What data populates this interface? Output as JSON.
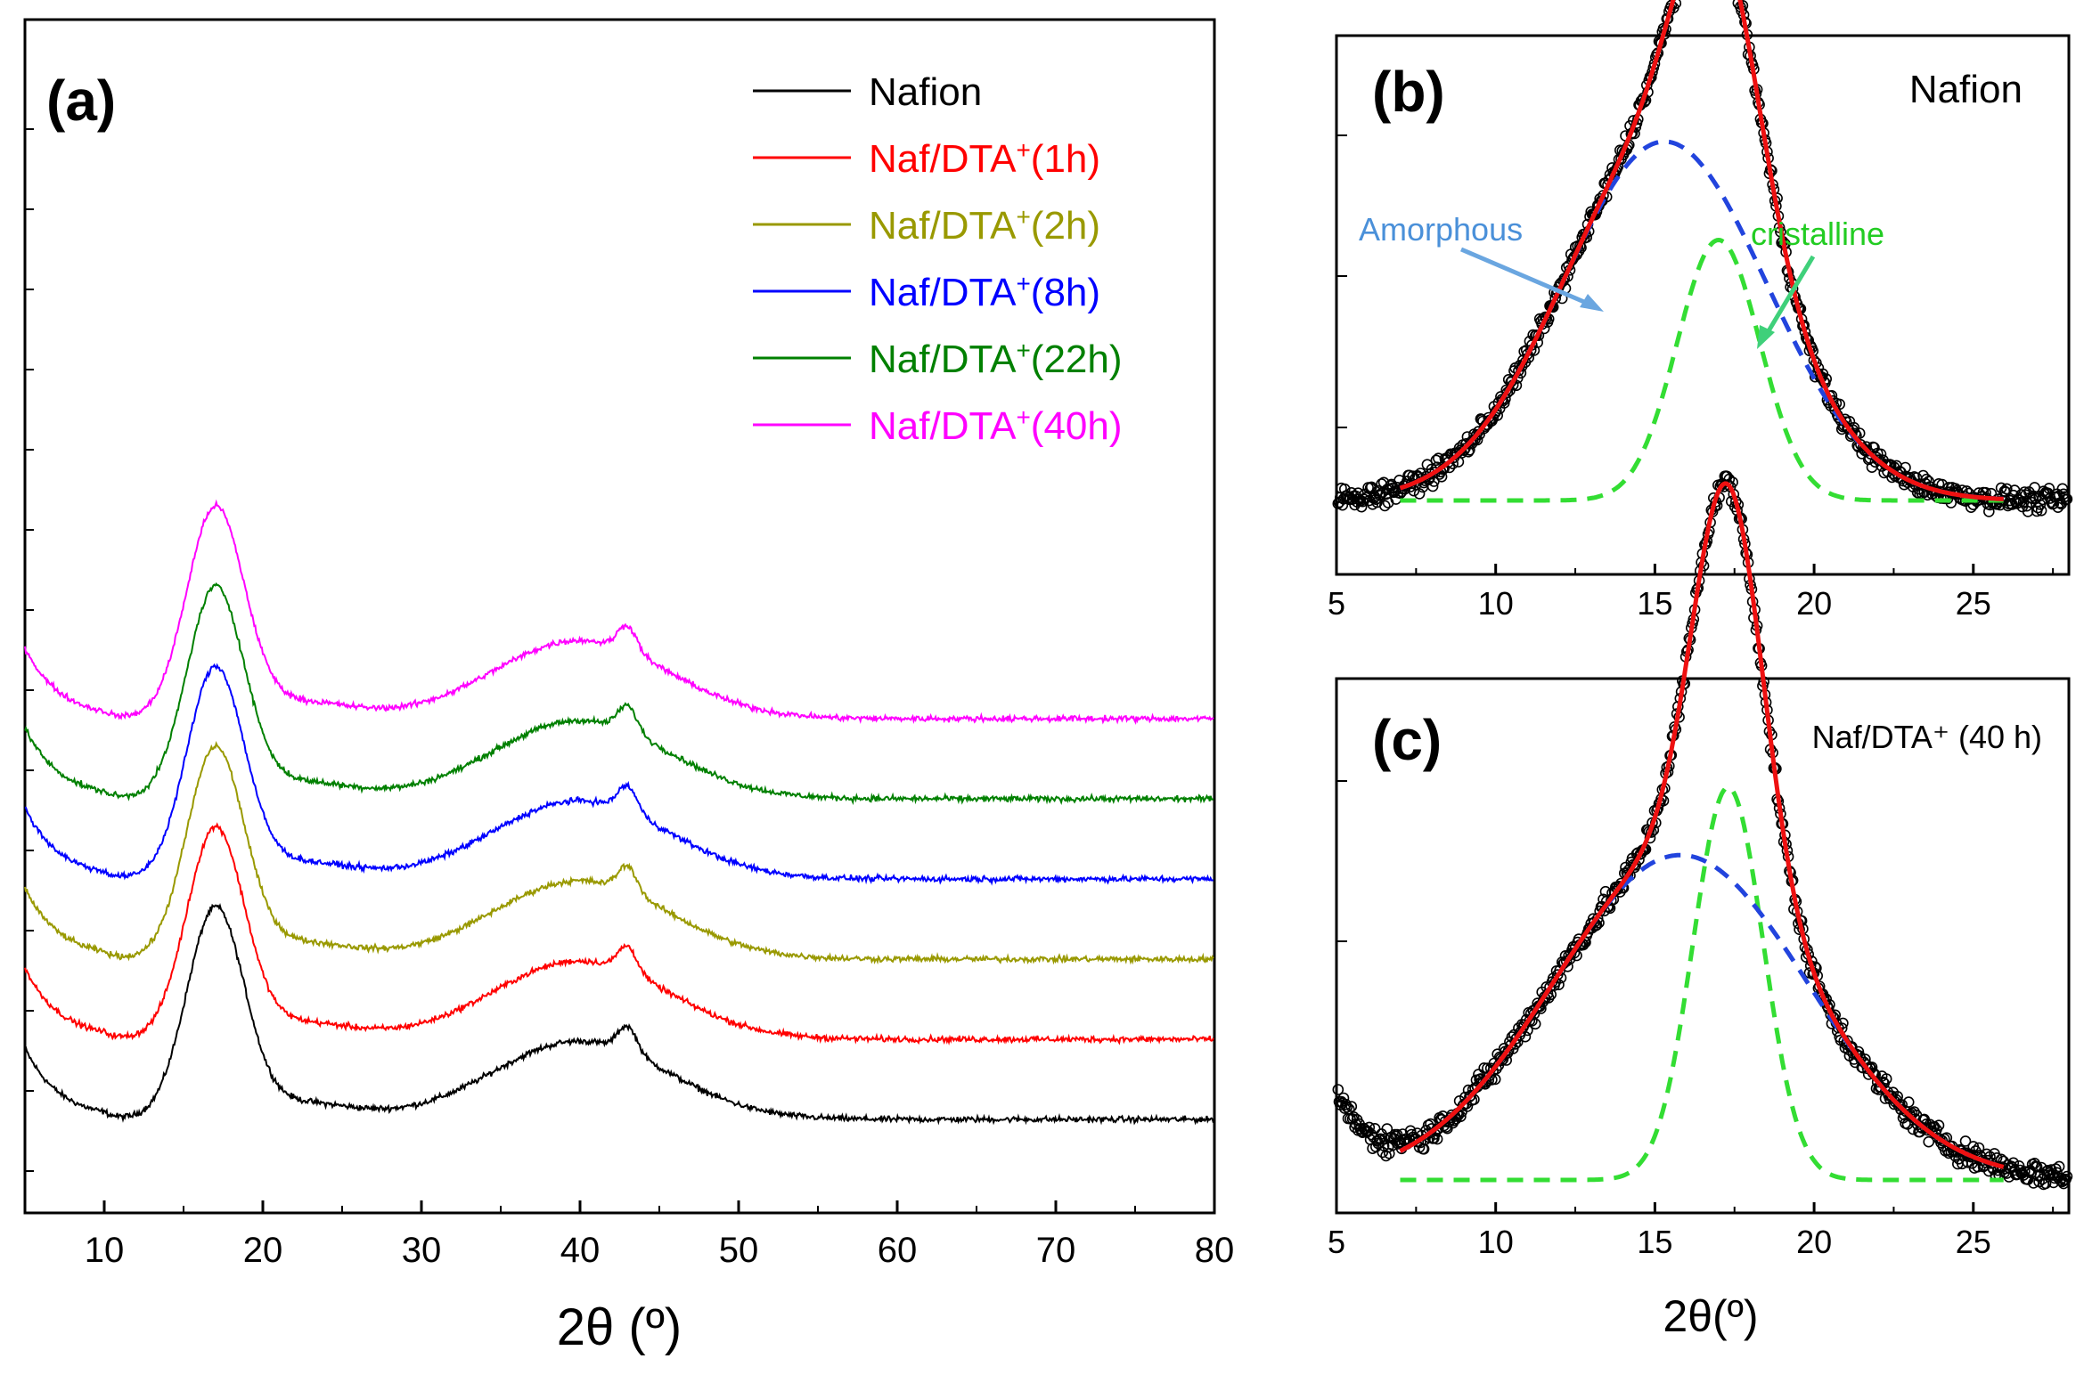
{
  "chart_data": [
    {
      "panel": "a",
      "type": "line",
      "panel_label": "(a)",
      "xlabel": "2θ (º)",
      "ylabel": "",
      "xlim": [
        5,
        80
      ],
      "xticks": [
        "10",
        "20",
        "30",
        "40",
        "50",
        "60",
        "70",
        "80"
      ],
      "legend_position": "top-right",
      "series": [
        {
          "name": "Nafion",
          "legend_label": "Nafion",
          "color": "#000000",
          "offset": 0
        },
        {
          "name": "Naf/DTA+(1h)",
          "legend_label": "Naf/DTA",
          "legend_sup": "+",
          "legend_suffix": "(1h)",
          "color": "#ff0000",
          "offset": 1
        },
        {
          "name": "Naf/DTA+(2h)",
          "legend_label": "Naf/DTA",
          "legend_sup": "+",
          "legend_suffix": "(2h)",
          "color": "#999900",
          "offset": 2
        },
        {
          "name": "Naf/DTA+(8h)",
          "legend_label": "Naf/DTA",
          "legend_sup": "+",
          "legend_suffix": "(8h)",
          "color": "#0000ff",
          "offset": 3
        },
        {
          "name": "Naf/DTA+(22h)",
          "legend_label": "Naf/DTA",
          "legend_sup": "+",
          "legend_suffix": "(22h)",
          "color": "#008000",
          "offset": 4
        },
        {
          "name": "Naf/DTA+(40h)",
          "legend_label": "Naf/DTA",
          "legend_sup": "+",
          "legend_suffix": "(40h)",
          "color": "#ff00ff",
          "offset": 5
        }
      ],
      "profile": {
        "start": 0.55,
        "valley": 0.0,
        "peak": 1.45,
        "peak_x": 17.0,
        "valley_x": 10.0,
        "amorphous_x": 40.0,
        "amorphous_h": 0.55,
        "sharp_x": 43.0,
        "tail": 0.05
      }
    },
    {
      "panel": "b",
      "type": "scatter",
      "panel_label": "(b)",
      "title": "Nafion",
      "xlim": [
        5,
        28
      ],
      "xticks": [
        "5",
        "10",
        "15",
        "20",
        "25"
      ],
      "annotations": [
        {
          "text": "Amorphous",
          "color": "#4a90d9"
        },
        {
          "text": "cristalline",
          "color": "#22cc22"
        }
      ],
      "fit": {
        "amorphous_center": 15.3,
        "amorphous_width": 3.2,
        "amorphous_height": 0.62,
        "crystal_center": 17.0,
        "crystal_width": 1.3,
        "crystal_height": 0.45,
        "baseline": 0.0
      }
    },
    {
      "panel": "c",
      "type": "scatter",
      "panel_label": "(c)",
      "title": "Naf/DTA⁺ (40 h)",
      "xlim": [
        5,
        28
      ],
      "xticks": [
        "5",
        "10",
        "15",
        "20",
        "25"
      ],
      "xlabel": "2θ(º)",
      "fit": {
        "amorphous_center": 15.8,
        "amorphous_width": 4.0,
        "amorphous_height": 0.48,
        "crystal_center": 17.3,
        "crystal_width": 1.1,
        "crystal_height": 0.58,
        "baseline": 0.0
      }
    }
  ]
}
